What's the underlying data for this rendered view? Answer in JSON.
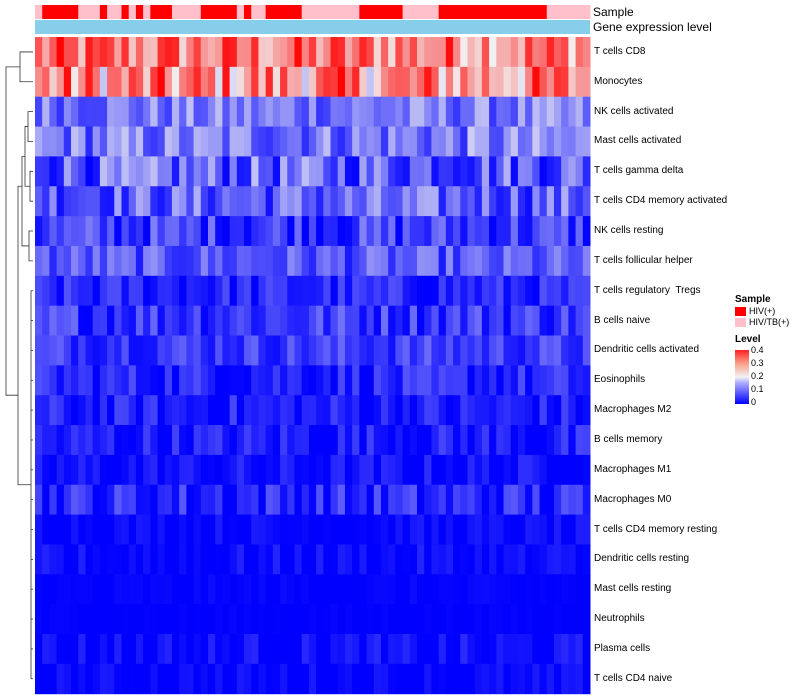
{
  "chart_data": {
    "type": "heatmap",
    "annotations": {
      "sample_label": "Sample",
      "gene_label": "Gene expression level",
      "sample": [
        "HIV/TB(+)",
        "HIV(+)",
        "HIV(+)",
        "HIV(+)",
        "HIV(+)",
        "HIV(+)",
        "HIV/TB(+)",
        "HIV/TB(+)",
        "HIV/TB(+)",
        "HIV(+)",
        "HIV/TB(+)",
        "HIV/TB(+)",
        "HIV(+)",
        "HIV/TB(+)",
        "HIV(+)",
        "HIV/TB(+)",
        "HIV(+)",
        "HIV(+)",
        "HIV(+)",
        "HIV/TB(+)",
        "HIV/TB(+)",
        "HIV/TB(+)",
        "HIV/TB(+)",
        "HIV(+)",
        "HIV(+)",
        "HIV(+)",
        "HIV(+)",
        "HIV(+)",
        "HIV/TB(+)",
        "HIV(+)",
        "HIV/TB(+)",
        "HIV/TB(+)",
        "HIV(+)",
        "HIV(+)",
        "HIV(+)",
        "HIV(+)",
        "HIV(+)",
        "HIV/TB(+)",
        "HIV/TB(+)",
        "HIV/TB(+)",
        "HIV/TB(+)",
        "HIV/TB(+)",
        "HIV/TB(+)",
        "HIV/TB(+)",
        "HIV/TB(+)",
        "HIV(+)",
        "HIV(+)",
        "HIV(+)",
        "HIV(+)",
        "HIV(+)",
        "HIV(+)",
        "HIV/TB(+)",
        "HIV/TB(+)",
        "HIV/TB(+)",
        "HIV/TB(+)",
        "HIV/TB(+)",
        "HIV(+)",
        "HIV(+)",
        "HIV(+)",
        "HIV(+)",
        "HIV(+)",
        "HIV(+)",
        "HIV(+)",
        "HIV(+)",
        "HIV(+)",
        "HIV(+)",
        "HIV(+)",
        "HIV(+)",
        "HIV(+)",
        "HIV(+)",
        "HIV(+)",
        "HIV/TB(+)",
        "HIV/TB(+)",
        "HIV/TB(+)",
        "HIV/TB(+)",
        "HIV/TB(+)",
        "HIV/TB(+)"
      ]
    },
    "rows": [
      {
        "label": "T cells CD8",
        "base": 0.3,
        "var": 0.1
      },
      {
        "label": "Monocytes",
        "base": 0.28,
        "var": 0.12
      },
      {
        "label": "NK cells activated",
        "base": 0.1,
        "var": 0.06
      },
      {
        "label": "Mast cells activated",
        "base": 0.1,
        "var": 0.07
      },
      {
        "label": "T cells gamma delta",
        "base": 0.08,
        "var": 0.08
      },
      {
        "label": "T cells CD4 memory activated",
        "base": 0.08,
        "var": 0.07
      },
      {
        "label": "NK cells resting",
        "base": 0.05,
        "var": 0.06
      },
      {
        "label": "T cells follicular helper",
        "base": 0.07,
        "var": 0.05
      },
      {
        "label": "T cells regulatory  Tregs",
        "base": 0.03,
        "var": 0.04
      },
      {
        "label": "B cells naive",
        "base": 0.05,
        "var": 0.05
      },
      {
        "label": "Dendritic cells activated",
        "base": 0.05,
        "var": 0.04
      },
      {
        "label": "Eosinophils",
        "base": 0.03,
        "var": 0.04
      },
      {
        "label": "Macrophages M2",
        "base": 0.02,
        "var": 0.04
      },
      {
        "label": "B cells memory",
        "base": 0.02,
        "var": 0.04
      },
      {
        "label": "Macrophages M1",
        "base": 0.01,
        "var": 0.03
      },
      {
        "label": "Macrophages M0",
        "base": 0.03,
        "var": 0.05
      },
      {
        "label": "T cells CD4 memory resting",
        "base": 0.005,
        "var": 0.02
      },
      {
        "label": "Dendritic cells resting",
        "base": 0.005,
        "var": 0.025
      },
      {
        "label": "Mast cells resting",
        "base": 0.0,
        "var": 0.01
      },
      {
        "label": "Neutrophils",
        "base": 0.0,
        "var": 0.005
      },
      {
        "label": "Plasma cells",
        "base": 0.005,
        "var": 0.03
      },
      {
        "label": "T cells CD4 naive",
        "base": 0.003,
        "var": 0.02
      }
    ],
    "n_columns": 77,
    "legend": {
      "sample_title": "Sample",
      "sample_items": [
        {
          "label": "HIV(+)",
          "color": "#ff0000"
        },
        {
          "label": "HIV/TB(+)",
          "color": "#ffc0cb"
        }
      ],
      "level_title": "Level",
      "level_ticks": [
        "0.4",
        "0.3",
        "0.2",
        "0.1",
        "0"
      ],
      "level_values": [
        0.4,
        0.3,
        0.2,
        0.1,
        0
      ],
      "range": [
        0,
        0.4
      ]
    },
    "colors": {
      "low": "#0000ff",
      "mid": "#f2f2f2",
      "high": "#ff0000",
      "gene_bar": "#87ceeb"
    }
  }
}
